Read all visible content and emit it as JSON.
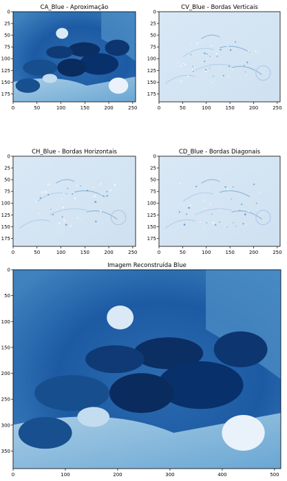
{
  "chart_data": [
    {
      "type": "heatmap",
      "title": "CA_Blue - Aproximação",
      "colormap": "Blues",
      "content": "approximation",
      "xlim": [
        0,
        256
      ],
      "ylim": [
        192,
        0
      ],
      "xticks": [
        0,
        50,
        100,
        150,
        200,
        250
      ],
      "yticks": [
        0,
        25,
        50,
        75,
        100,
        125,
        150,
        175
      ]
    },
    {
      "type": "heatmap",
      "title": "CV_Blue - Bordas Verticais",
      "colormap": "Blues",
      "content": "edges",
      "xlim": [
        0,
        256
      ],
      "ylim": [
        192,
        0
      ],
      "xticks": [
        0,
        50,
        100,
        150,
        200,
        250
      ],
      "yticks": [
        0,
        25,
        50,
        75,
        100,
        125,
        150,
        175
      ]
    },
    {
      "type": "heatmap",
      "title": "CH_Blue - Bordas Horizontais",
      "colormap": "Blues",
      "content": "edges",
      "xlim": [
        0,
        256
      ],
      "ylim": [
        192,
        0
      ],
      "xticks": [
        0,
        50,
        100,
        150,
        200,
        250
      ],
      "yticks": [
        0,
        25,
        50,
        75,
        100,
        125,
        150,
        175
      ]
    },
    {
      "type": "heatmap",
      "title": "CD_Blue - Bordas Diagonais",
      "colormap": "Blues",
      "content": "edges",
      "xlim": [
        0,
        256
      ],
      "ylim": [
        192,
        0
      ],
      "xticks": [
        0,
        50,
        100,
        150,
        200,
        250
      ],
      "yticks": [
        0,
        25,
        50,
        75,
        100,
        125,
        150,
        175
      ]
    },
    {
      "type": "heatmap",
      "title": "Imagem Reconstruída Blue",
      "colormap": "Blues",
      "content": "approximation",
      "xlim": [
        0,
        512
      ],
      "ylim": [
        384,
        0
      ],
      "xticks": [
        0,
        100,
        200,
        300,
        400,
        500
      ],
      "yticks": [
        0,
        50,
        100,
        150,
        200,
        250,
        300,
        350
      ]
    }
  ],
  "colors": {
    "edge_background": "#d6e6f4",
    "approx_light": "#9ac8e0",
    "approx_dark": "#08306b"
  }
}
